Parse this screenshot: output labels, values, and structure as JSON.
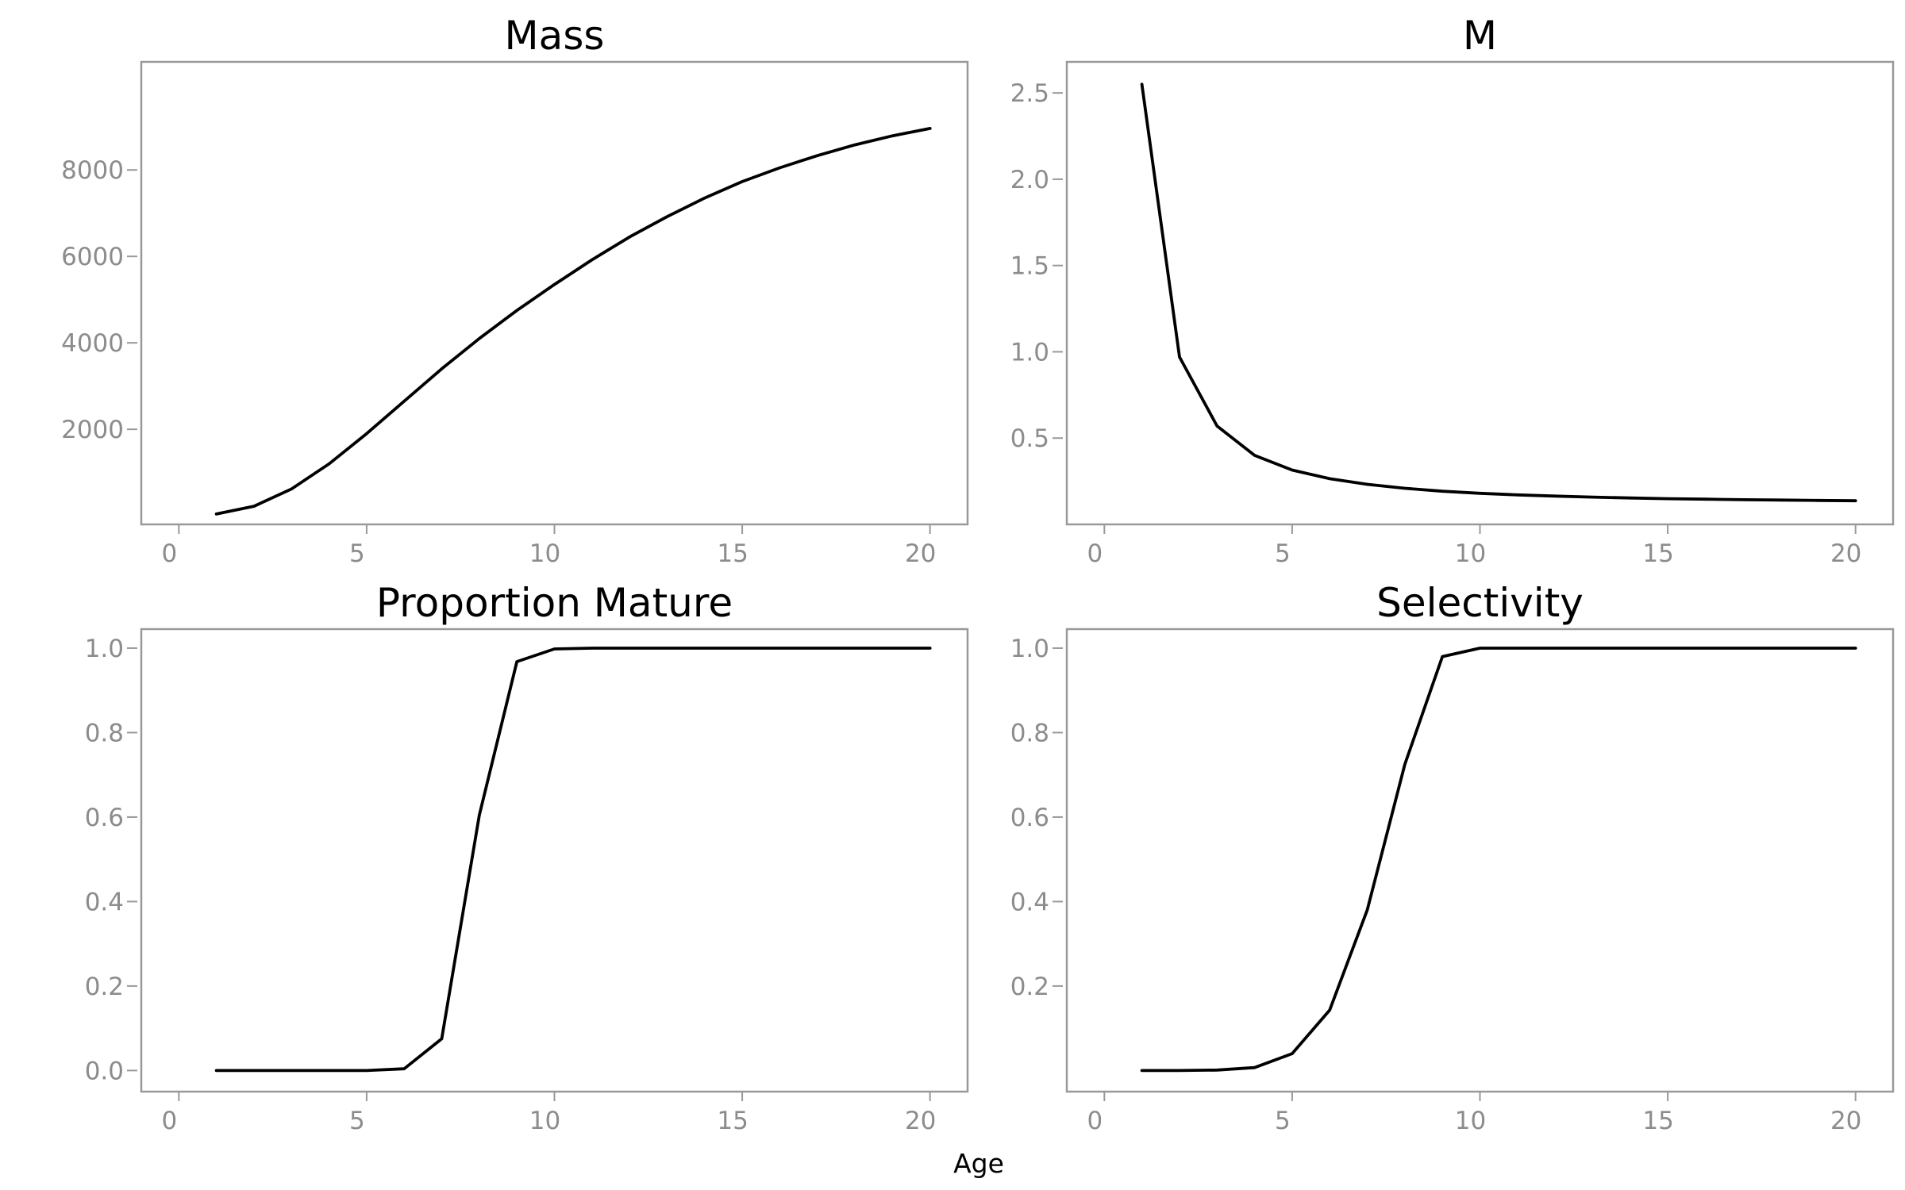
{
  "figure": {
    "xlabel": "Age"
  },
  "chart_data": [
    {
      "type": "line",
      "title": "Mass",
      "xlabel": "",
      "ylabel": "",
      "xlim": [
        -1,
        21
      ],
      "ylim": [
        -200,
        10500
      ],
      "xticks": [
        0,
        5,
        10,
        15,
        20
      ],
      "yticks": [
        2000,
        4000,
        6000,
        8000
      ],
      "x": [
        1,
        2,
        3,
        4,
        5,
        6,
        7,
        8,
        9,
        10,
        11,
        12,
        13,
        14,
        15,
        16,
        17,
        18,
        19,
        20
      ],
      "series": [
        {
          "values": [
            40,
            220,
            620,
            1200,
            1900,
            2650,
            3400,
            4100,
            4750,
            5350,
            5920,
            6450,
            6920,
            7350,
            7730,
            8050,
            8330,
            8580,
            8790,
            8960
          ]
        }
      ]
    },
    {
      "type": "line",
      "title": "M",
      "xlabel": "",
      "ylabel": "",
      "xlim": [
        -1,
        21
      ],
      "ylim": [
        0.0,
        2.68
      ],
      "xticks": [
        0,
        5,
        10,
        15,
        20
      ],
      "yticks": [
        0.5,
        1.0,
        1.5,
        2.0,
        2.5
      ],
      "x": [
        1,
        2,
        3,
        4,
        5,
        6,
        7,
        8,
        9,
        10,
        11,
        12,
        13,
        14,
        15,
        16,
        17,
        18,
        19,
        20
      ],
      "series": [
        {
          "values": [
            2.55,
            0.97,
            0.57,
            0.4,
            0.315,
            0.265,
            0.232,
            0.209,
            0.192,
            0.18,
            0.171,
            0.164,
            0.158,
            0.153,
            0.149,
            0.146,
            0.143,
            0.141,
            0.139,
            0.137
          ]
        }
      ]
    },
    {
      "type": "line",
      "title": "Proportion Mature",
      "xlabel": "",
      "ylabel": "",
      "xlim": [
        -1,
        21
      ],
      "ylim": [
        -0.05,
        1.045
      ],
      "xticks": [
        0,
        5,
        10,
        15,
        20
      ],
      "yticks": [
        0.0,
        0.2,
        0.4,
        0.6,
        0.8,
        1.0
      ],
      "x": [
        1,
        2,
        3,
        4,
        5,
        6,
        7,
        8,
        9,
        10,
        11,
        12,
        13,
        14,
        15,
        16,
        17,
        18,
        19,
        20
      ],
      "series": [
        {
          "values": [
            0.0,
            0.0,
            0.0,
            0.0,
            0.0,
            0.004,
            0.075,
            0.605,
            0.968,
            0.998,
            1.0,
            1.0,
            1.0,
            1.0,
            1.0,
            1.0,
            1.0,
            1.0,
            1.0,
            1.0
          ]
        }
      ]
    },
    {
      "type": "line",
      "title": "Selectivity",
      "xlabel": "",
      "ylabel": "",
      "xlim": [
        -1,
        21
      ],
      "ylim": [
        -0.05,
        1.045
      ],
      "xticks": [
        0,
        5,
        10,
        15,
        20
      ],
      "yticks": [
        0.2,
        0.4,
        0.6,
        0.8,
        1.0
      ],
      "x": [
        1,
        2,
        3,
        4,
        5,
        6,
        7,
        8,
        9,
        10,
        11,
        12,
        13,
        14,
        15,
        16,
        17,
        18,
        19,
        20
      ],
      "series": [
        {
          "values": [
            0.0,
            0.0,
            0.001,
            0.007,
            0.04,
            0.143,
            0.38,
            0.725,
            0.98,
            1.0,
            1.0,
            1.0,
            1.0,
            1.0,
            1.0,
            1.0,
            1.0,
            1.0,
            1.0,
            1.0
          ]
        }
      ]
    }
  ]
}
